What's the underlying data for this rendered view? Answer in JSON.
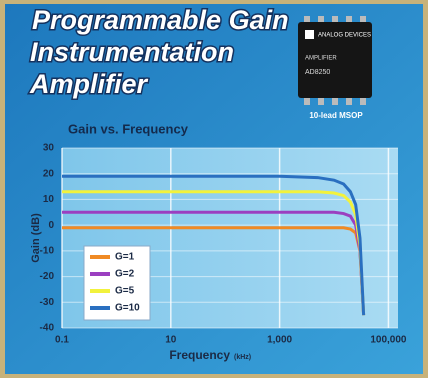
{
  "header": {
    "title_lines": [
      "Programmable Gain",
      "Instrumentation",
      "Amplifier"
    ]
  },
  "product": {
    "brand": "ANALOG DEVICES",
    "family": "AMPLIFIER",
    "part": "AD8250",
    "package": "10-lead MSOP"
  },
  "chart_data": {
    "type": "line",
    "title": "Gain vs. Frequency",
    "x_label": "Frequency",
    "x_unit": "(kHz)",
    "y_label": "Gain (dB)",
    "log_x": true,
    "grid": true,
    "legend": "lower-left",
    "x": [
      0.1,
      1000,
      5000,
      10000,
      15000,
      20000,
      25000,
      30000,
      35000
    ],
    "series": [
      {
        "name": "G=1",
        "color": "#f08a24",
        "values": [
          -1,
          -1,
          -1,
          -1,
          -1,
          -1.5,
          -3,
          -10,
          -35
        ]
      },
      {
        "name": "G=2",
        "color": "#9b3fc0",
        "values": [
          5,
          5,
          5,
          5,
          4.5,
          3.5,
          0,
          -10,
          -35
        ]
      },
      {
        "name": "G=5",
        "color": "#f2f23c",
        "values": [
          13,
          13,
          13,
          12.5,
          11.5,
          9,
          4,
          -8,
          -35
        ]
      },
      {
        "name": "G=10",
        "color": "#2a6fc0",
        "values": [
          19,
          19,
          18.5,
          17.5,
          16,
          13,
          8,
          -5,
          -35
        ]
      }
    ],
    "xlim": [
      0.1,
      150000
    ],
    "xticks": [
      0.1,
      10,
      {
        "value": 1000,
        "label": "1,000"
      },
      {
        "value": 100000,
        "label": "100,000"
      }
    ],
    "ylim": [
      -40,
      30
    ],
    "yticks": [
      30,
      20,
      10,
      0,
      -10,
      -20,
      -30,
      -40
    ]
  }
}
